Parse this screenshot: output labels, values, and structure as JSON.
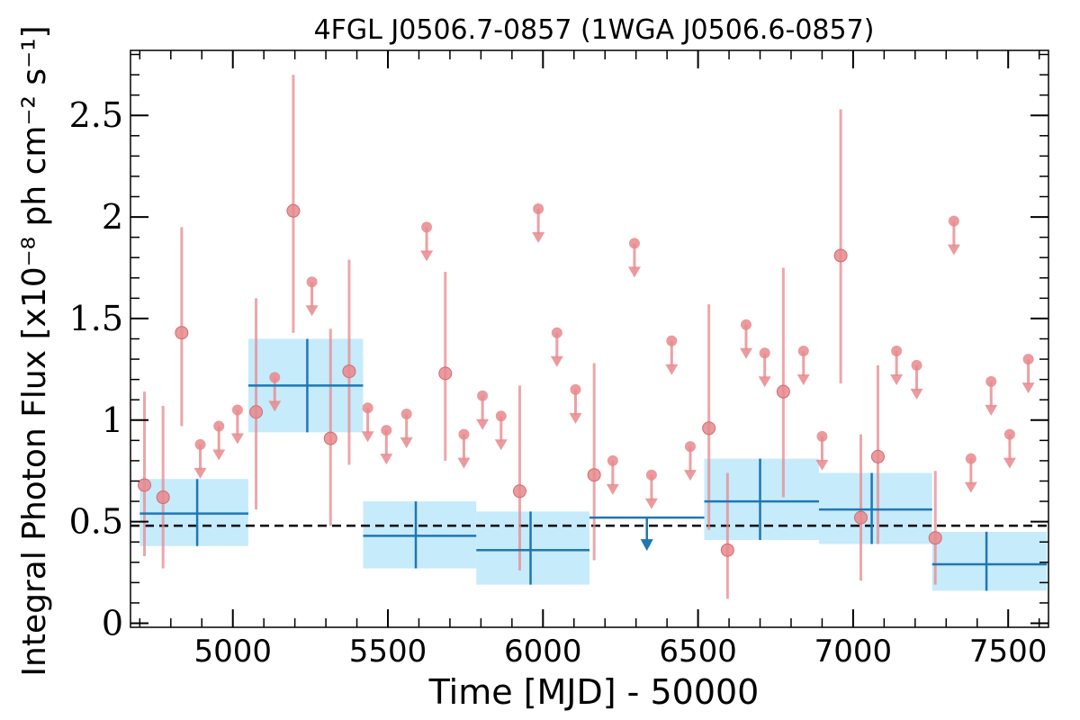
{
  "chart_data": {
    "type": "scatter",
    "title": "4FGL J0506.7-0857 (1WGA J0506.6-0857)",
    "xlabel": "Time [MJD] - 50000",
    "ylabel": "Integral Photon Flux [x10⁻⁸ ph cm⁻² s⁻¹]",
    "xlim": [
      4670,
      7630
    ],
    "ylim": [
      -0.02,
      2.82
    ],
    "x_ticks": [
      5000,
      5500,
      6000,
      6500,
      7000,
      7500
    ],
    "x_tick_labels": [
      "5000",
      "5500",
      "6000",
      "6500",
      "7000",
      "7500"
    ],
    "y_ticks": [
      0,
      0.5,
      1,
      1.5,
      2,
      2.5
    ],
    "y_tick_labels": [
      "0",
      "0.5",
      "1",
      "1.5",
      "2",
      "2.5"
    ],
    "reference_line": {
      "y": 0.48,
      "style": "dashed"
    },
    "colors": {
      "short_bins": "#e8888c",
      "long_bins": "#1f77b4",
      "long_bin_band": "#c6ebfb",
      "reference": "#000000"
    },
    "series": [
      {
        "role": "short_bins",
        "detections": [
          {
            "x": 4715,
            "y": 0.68,
            "ylo": 0.33,
            "yhi": 1.14
          },
          {
            "x": 4775,
            "y": 0.62,
            "ylo": 0.27,
            "yhi": 1.07
          },
          {
            "x": 4835,
            "y": 1.43,
            "ylo": 0.97,
            "yhi": 1.95
          },
          {
            "x": 5075,
            "y": 1.04,
            "ylo": 0.56,
            "yhi": 1.6
          },
          {
            "x": 5195,
            "y": 2.03,
            "ylo": 1.43,
            "yhi": 2.7
          },
          {
            "x": 5315,
            "y": 0.91,
            "ylo": 0.48,
            "yhi": 1.45
          },
          {
            "x": 5375,
            "y": 1.24,
            "ylo": 0.78,
            "yhi": 1.79
          },
          {
            "x": 5685,
            "y": 1.23,
            "ylo": 0.8,
            "yhi": 1.73
          },
          {
            "x": 5925,
            "y": 0.65,
            "ylo": 0.26,
            "yhi": 1.17
          },
          {
            "x": 6165,
            "y": 0.73,
            "ylo": 0.31,
            "yhi": 1.28
          },
          {
            "x": 6535,
            "y": 0.96,
            "ylo": 0.46,
            "yhi": 1.57
          },
          {
            "x": 6595,
            "y": 0.36,
            "ylo": 0.12,
            "yhi": 0.74
          },
          {
            "x": 6775,
            "y": 1.14,
            "ylo": 0.62,
            "yhi": 1.75
          },
          {
            "x": 6960,
            "y": 1.81,
            "ylo": 1.18,
            "yhi": 2.53
          },
          {
            "x": 7025,
            "y": 0.52,
            "ylo": 0.21,
            "yhi": 0.93
          },
          {
            "x": 7080,
            "y": 0.82,
            "ylo": 0.39,
            "yhi": 1.27
          },
          {
            "x": 7265,
            "y": 0.42,
            "ylo": 0.19,
            "yhi": 0.75
          }
        ],
        "upper_limits": [
          {
            "x": 4895,
            "y": 0.88
          },
          {
            "x": 4955,
            "y": 0.97
          },
          {
            "x": 5015,
            "y": 1.05
          },
          {
            "x": 5135,
            "y": 1.21
          },
          {
            "x": 5255,
            "y": 1.68
          },
          {
            "x": 5435,
            "y": 1.06
          },
          {
            "x": 5495,
            "y": 0.95
          },
          {
            "x": 5560,
            "y": 1.03
          },
          {
            "x": 5625,
            "y": 1.95
          },
          {
            "x": 5745,
            "y": 0.93
          },
          {
            "x": 5805,
            "y": 1.12
          },
          {
            "x": 5865,
            "y": 1.02
          },
          {
            "x": 5985,
            "y": 2.04
          },
          {
            "x": 6045,
            "y": 1.43
          },
          {
            "x": 6105,
            "y": 1.15
          },
          {
            "x": 6225,
            "y": 0.8
          },
          {
            "x": 6295,
            "y": 1.87
          },
          {
            "x": 6350,
            "y": 0.73
          },
          {
            "x": 6415,
            "y": 1.39
          },
          {
            "x": 6475,
            "y": 0.87
          },
          {
            "x": 6655,
            "y": 1.47
          },
          {
            "x": 6715,
            "y": 1.33
          },
          {
            "x": 6840,
            "y": 1.34
          },
          {
            "x": 6900,
            "y": 0.92
          },
          {
            "x": 7140,
            "y": 1.34
          },
          {
            "x": 7205,
            "y": 1.27
          },
          {
            "x": 7325,
            "y": 1.98
          },
          {
            "x": 7380,
            "y": 0.81
          },
          {
            "x": 7445,
            "y": 1.19
          },
          {
            "x": 7505,
            "y": 0.93
          },
          {
            "x": 7565,
            "y": 1.3
          }
        ]
      },
      {
        "role": "long_bins",
        "detections": [
          {
            "x0": 4700,
            "x1": 5050,
            "x": 4885,
            "y": 0.54,
            "ylo": 0.38,
            "yhi": 0.71
          },
          {
            "x0": 5050,
            "x1": 5420,
            "x": 5240,
            "y": 1.17,
            "ylo": 0.94,
            "yhi": 1.4
          },
          {
            "x0": 5420,
            "x1": 5785,
            "x": 5590,
            "y": 0.43,
            "ylo": 0.27,
            "yhi": 0.6
          },
          {
            "x0": 5785,
            "x1": 6150,
            "x": 5960,
            "y": 0.36,
            "ylo": 0.19,
            "yhi": 0.55
          },
          {
            "x0": 6520,
            "x1": 6890,
            "x": 6700,
            "y": 0.6,
            "ylo": 0.41,
            "yhi": 0.81
          },
          {
            "x0": 6890,
            "x1": 7255,
            "x": 7060,
            "y": 0.56,
            "ylo": 0.39,
            "yhi": 0.74
          },
          {
            "x0": 7255,
            "x1": 7625,
            "x": 7430,
            "y": 0.29,
            "ylo": 0.16,
            "yhi": 0.45
          }
        ],
        "upper_limits": [
          {
            "x0": 6150,
            "x1": 6520,
            "x": 6335,
            "y": 0.52
          }
        ]
      }
    ]
  }
}
